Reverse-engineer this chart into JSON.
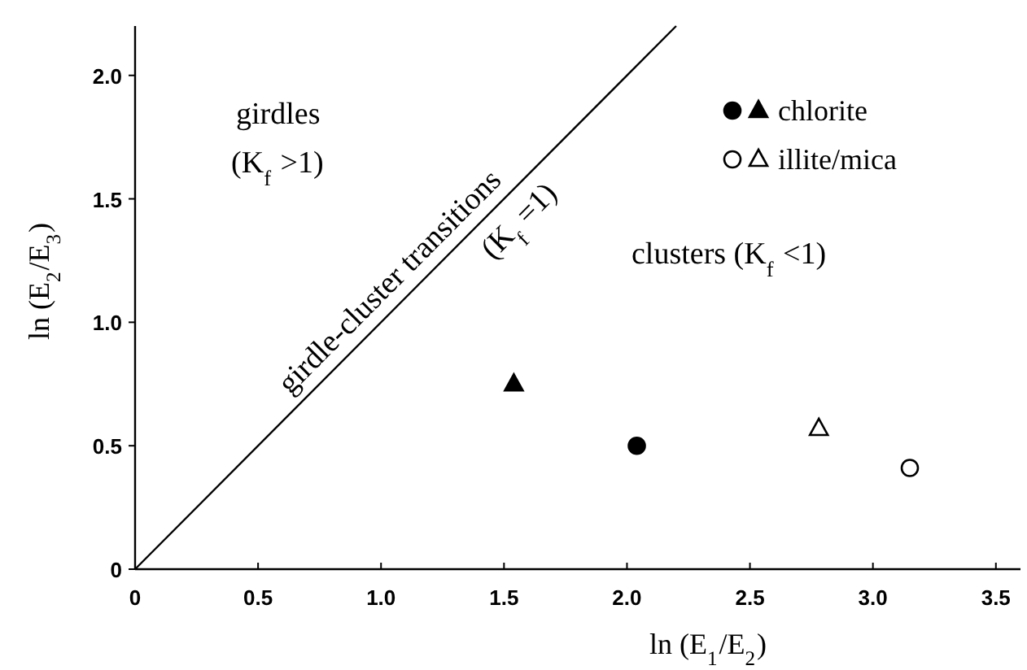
{
  "chart_data": {
    "type": "scatter",
    "xlabel": "ln (E$_{1}$/E$_{2}$)",
    "ylabel": "ln (E$_{2}$/E$_{3}$)",
    "xlim": [
      0,
      3.6
    ],
    "ylim": [
      0,
      2.2
    ],
    "xticks": [
      0,
      0.5,
      {
        "value": 1,
        "label": "1.0"
      },
      1.5,
      {
        "value": 2,
        "label": "2.0"
      },
      2.5,
      {
        "value": 3,
        "label": "3.0"
      },
      3.5
    ],
    "yticks": [
      0,
      0.5,
      {
        "value": 1,
        "label": "1.0"
      },
      1.5,
      {
        "value": 2,
        "label": "2.0"
      }
    ],
    "grid": false,
    "legend": "top right",
    "series": [
      {
        "color": "#000000",
        "marker": "circle",
        "x": [
          2.04
        ],
        "values": [
          0.5
        ]
      },
      {
        "name": "chlorite",
        "color": "#000000",
        "marker": "triangle",
        "x": [
          1.54
        ],
        "values": [
          0.75
        ]
      },
      {
        "color": "#ffffff",
        "marker": "circle",
        "x": [
          3.15
        ],
        "values": [
          0.41
        ]
      },
      {
        "name": "illite/mica",
        "color": "#ffffff",
        "marker": "triangle",
        "x": [
          2.78
        ],
        "values": [
          0.57
        ]
      },
      {
        "type": "line",
        "color": "#000000",
        "line_style": "solid",
        "x": [
          0,
          2.2
        ],
        "values": [
          0,
          2.2
        ]
      }
    ],
    "annotations": [
      "girdles",
      "(K$_{f}$ >1)",
      {
        "text": "girdle-cluster transitions",
        "x": 1.1,
        "y": 1.1
      },
      {
        "text": "(K$_{f}$ =1)",
        "x": 1.1,
        "y": 1.1
      },
      "clusters  (K$_{f}$ <1)"
    ]
  }
}
